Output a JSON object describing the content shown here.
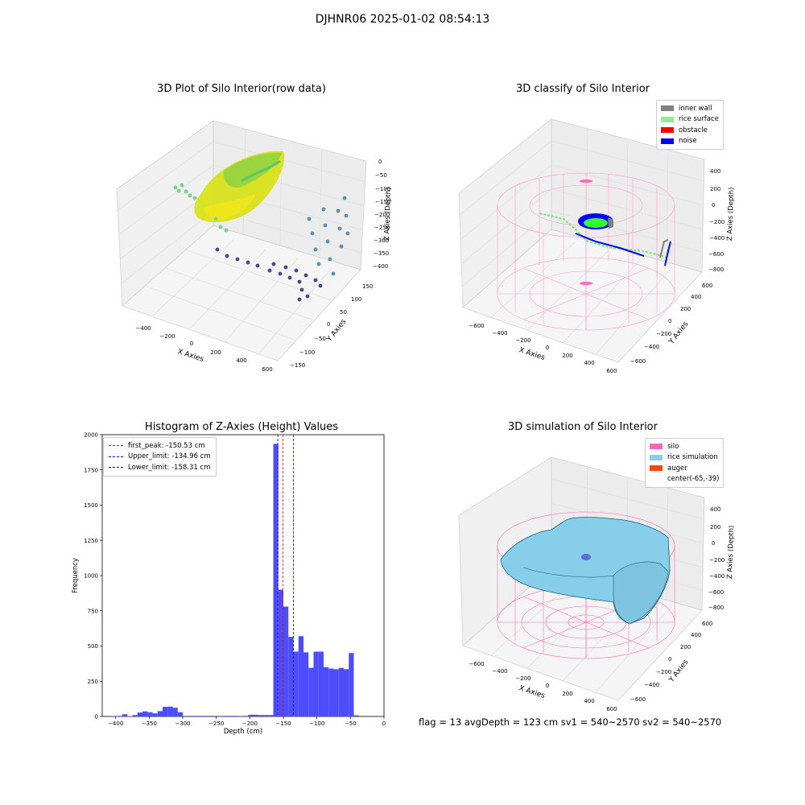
{
  "suptitle": "DJHNR06 2025-01-02 08:54:13",
  "colors": {
    "inner_wall": "#808080",
    "rice_surface": "#90ee90",
    "obstacle": "#ff0000",
    "noise": "#0000ff",
    "silo": "#ff69b4",
    "rice_simulation": "#87ceeb",
    "auger": "#ff4500",
    "hist_bar": "#4d4dff",
    "first_peak": "#ff0000",
    "limits": "#0000ff"
  },
  "panel_raw": {
    "title": "3D Plot of Silo Interior(row data)",
    "xlabel": "X Axies",
    "ylabel": "Y Axies",
    "zlabel": "Z Axies (Depth)",
    "xticks": [
      "−400",
      "−200",
      "0",
      "200",
      "400",
      "600"
    ],
    "yticks": [
      "−150",
      "−100",
      "−50",
      "0",
      "50",
      "100",
      "150"
    ],
    "zticks": [
      "0",
      "−50",
      "−100",
      "−150",
      "−200",
      "−250",
      "−300",
      "−350",
      "−400"
    ]
  },
  "panel_classify": {
    "title": "3D classify of Silo Interior",
    "xlabel": "X Axies",
    "ylabel": "Y Axies",
    "zlabel": "Z Axies (Depth)",
    "xticks": [
      "−600",
      "−400",
      "−200",
      "0",
      "200",
      "400",
      "600"
    ],
    "yticks": [
      "−600",
      "−400",
      "−200",
      "0",
      "200",
      "400",
      "600"
    ],
    "zticks": [
      "400",
      "200",
      "0",
      "−200",
      "−400",
      "−600",
      "−800"
    ],
    "legend": [
      {
        "label": "inner wall",
        "color_key": "inner_wall"
      },
      {
        "label": "rice surface",
        "color_key": "rice_surface"
      },
      {
        "label": "obstacle",
        "color_key": "obstacle"
      },
      {
        "label": "noise",
        "color_key": "noise"
      }
    ]
  },
  "panel_sim": {
    "title": "3D simulation of Silo Interior",
    "xlabel": "X Axies",
    "ylabel": "Y Axies",
    "zlabel": "Z Axies (Depth)",
    "xticks": [
      "−600",
      "−400",
      "−200",
      "0",
      "200",
      "400",
      "600"
    ],
    "yticks": [
      "−600",
      "−400",
      "−200",
      "0",
      "200",
      "400",
      "600"
    ],
    "zticks": [
      "400",
      "200",
      "0",
      "−200",
      "−400",
      "−600",
      "−800"
    ],
    "legend": [
      {
        "label": "silo",
        "color_key": "silo"
      },
      {
        "label": "rice simulation",
        "color_key": "rice_simulation"
      },
      {
        "label": "auger",
        "color_key": "auger"
      },
      {
        "label": "center(-65,-39)",
        "color_key": ""
      }
    ]
  },
  "stats_text": "flag = 13  avgDepth = 123 cm  sv1 = 540~2570  sv2 = 540~2570",
  "chart_data": {
    "type": "bar",
    "title": "Histogram of Z-Axies (Height) Values",
    "xlabel": "Depth (cm)",
    "ylabel": "Frequency",
    "xlim": [
      -420,
      0
    ],
    "ylim": [
      0,
      2000
    ],
    "xticks": [
      -400,
      -350,
      -300,
      -250,
      -200,
      -150,
      -100,
      -50,
      0
    ],
    "yticks": [
      0,
      250,
      500,
      750,
      1000,
      1250,
      1500,
      1750,
      2000
    ],
    "bin_start": -405,
    "bin_width": 7.5,
    "values": [
      2,
      4,
      16,
      3,
      10,
      28,
      36,
      30,
      22,
      38,
      68,
      70,
      62,
      30,
      4,
      4,
      4,
      4,
      4,
      4,
      4,
      2,
      4,
      4,
      4,
      2,
      4,
      12,
      12,
      10,
      10,
      10,
      1935,
      900,
      780,
      565,
      460,
      570,
      455,
      345,
      460,
      460,
      350,
      340,
      335,
      345,
      335,
      450,
      8
    ],
    "lines": [
      {
        "label": "first_peak: -150.53 cm",
        "value": -150.53,
        "color_key": "first_peak"
      },
      {
        "label": "Upper_limit: -134.96 cm",
        "value": -134.96,
        "color_key": "limits"
      },
      {
        "label": "Lower_limit: -158.31 cm",
        "value": -158.31,
        "color_key": "limits"
      }
    ]
  }
}
